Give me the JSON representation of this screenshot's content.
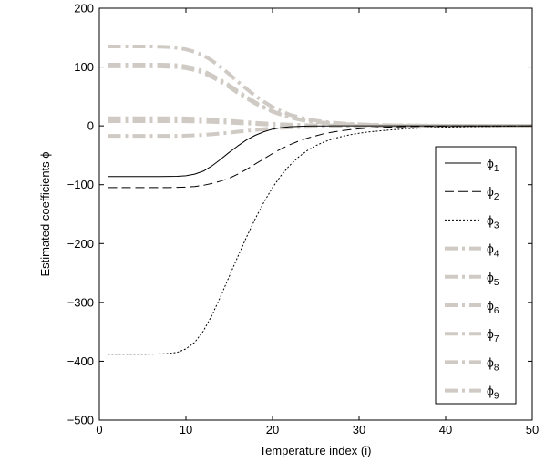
{
  "chart_data": {
    "type": "line",
    "title": "",
    "xlabel": "Temperature index (i)",
    "ylabel": "Estimated coefficients ϕ",
    "xlim": [
      0,
      50
    ],
    "ylim": [
      -500,
      200
    ],
    "xticks": [
      0,
      10,
      20,
      30,
      40,
      50
    ],
    "yticks": [
      -500,
      -400,
      -300,
      -200,
      -100,
      0,
      100,
      200
    ],
    "grid": false,
    "legend_position": "right",
    "x": [
      1,
      2,
      3,
      4,
      5,
      6,
      7,
      8,
      9,
      10,
      11,
      12,
      13,
      14,
      15,
      16,
      17,
      18,
      19,
      20,
      21,
      22,
      23,
      24,
      25,
      26,
      27,
      28,
      29,
      30,
      31,
      32,
      33,
      34,
      35,
      36,
      37,
      38,
      39,
      40,
      41,
      42,
      43,
      44,
      45,
      46,
      47,
      48,
      49,
      50
    ],
    "series": [
      {
        "name": "ϕ",
        "subscript": "1",
        "color": "#000000",
        "dash": "solid",
        "width": 1,
        "values": [
          -86,
          -86,
          -86,
          -86,
          -86,
          -86,
          -86,
          -85.9,
          -85.8,
          -84.8,
          -82,
          -77,
          -68,
          -57,
          -45,
          -34,
          -24,
          -16,
          -10,
          -5.5,
          -3,
          -1.5,
          -0.8,
          -0.4,
          -0.2,
          -0.1,
          0,
          0,
          0,
          0,
          0,
          0,
          0,
          0,
          0,
          0,
          0,
          0,
          0,
          0,
          0,
          0,
          0,
          0,
          0,
          0,
          0,
          0,
          0,
          0
        ]
      },
      {
        "name": "ϕ",
        "subscript": "2",
        "color": "#000000",
        "dash": "dashed",
        "width": 1,
        "values": [
          -105,
          -105,
          -105,
          -105,
          -105,
          -105,
          -105,
          -105,
          -104.5,
          -104,
          -103,
          -101,
          -98,
          -94,
          -89,
          -82,
          -74,
          -65,
          -56,
          -47,
          -39,
          -32,
          -26,
          -21,
          -17,
          -13,
          -10.5,
          -8.2,
          -6.4,
          -5,
          -3.9,
          -3,
          -2.3,
          -1.8,
          -1.4,
          -1.1,
          -0.85,
          -0.65,
          -0.5,
          -0.38,
          -0.3,
          -0.22,
          -0.17,
          -0.13,
          -0.1,
          -0.07,
          -0.05,
          -0.04,
          -0.03,
          -0.02
        ]
      },
      {
        "name": "ϕ",
        "subscript": "3",
        "color": "#000000",
        "dash": "dotted",
        "width": 1,
        "values": [
          -388,
          -388,
          -388,
          -388,
          -388,
          -388,
          -387.5,
          -387,
          -385,
          -379,
          -368,
          -349,
          -322,
          -290,
          -256,
          -222,
          -189,
          -158,
          -130,
          -105,
          -84,
          -67,
          -53,
          -42,
          -33.5,
          -27,
          -22,
          -18,
          -15,
          -12.5,
          -10.5,
          -9,
          -7.6,
          -6.4,
          -5.4,
          -4.5,
          -3.8,
          -3.2,
          -2.6,
          -2.2,
          -1.8,
          -1.5,
          -1.2,
          -1,
          -0.8,
          -0.65,
          -0.5,
          -0.4,
          -0.3,
          -0.2
        ]
      },
      {
        "name": "ϕ",
        "subscript": "4",
        "color": "#cfcac4",
        "dash": "dashdot",
        "width": 4,
        "values": [
          135,
          135,
          135,
          135,
          135,
          135,
          134.5,
          134,
          132.5,
          130,
          126,
          120,
          111,
          100,
          88,
          75,
          63,
          51,
          41,
          32,
          25,
          19,
          15,
          11.5,
          9,
          7,
          5.5,
          4.3,
          3.4,
          2.7,
          2.1,
          1.7,
          1.3,
          1,
          0.8,
          0.6,
          0.5,
          0.4,
          0.3,
          0.25,
          0.2,
          0.15,
          0.12,
          0.1,
          0.08,
          0.06,
          0.05,
          0.04,
          0.03,
          0.02
        ]
      },
      {
        "name": "ϕ",
        "subscript": "5",
        "color": "#cfcac4",
        "dash": "dashdot",
        "width": 4,
        "values": [
          101,
          101,
          101,
          101,
          101,
          101,
          101,
          100.5,
          100,
          98,
          95,
          90,
          83,
          75,
          66,
          56,
          47,
          38,
          31,
          24,
          19,
          14.5,
          11,
          8.5,
          6.7,
          5.2,
          4.1,
          3.2,
          2.5,
          2,
          1.6,
          1.3,
          1,
          0.8,
          0.6,
          0.5,
          0.4,
          0.3,
          0.25,
          0.2,
          0.15,
          0.12,
          0.1,
          0.08,
          0.06,
          0.05,
          0.04,
          0.03,
          0.02,
          0.01
        ]
      },
      {
        "name": "ϕ",
        "subscript": "6",
        "color": "#cfcac4",
        "dash": "dashdot",
        "width": 4,
        "values": [
          104,
          104,
          104,
          104,
          104,
          104,
          104,
          103.5,
          103,
          101,
          98,
          93,
          86,
          78,
          69,
          59,
          49,
          40,
          32,
          25,
          19.5,
          15,
          11.5,
          9,
          7,
          5.4,
          4.2,
          3.3,
          2.6,
          2,
          1.6,
          1.3,
          1,
          0.8,
          0.6,
          0.5,
          0.4,
          0.3,
          0.25,
          0.2,
          0.15,
          0.12,
          0.1,
          0.08,
          0.06,
          0.05,
          0.04,
          0.03,
          0.02,
          0.01
        ]
      },
      {
        "name": "ϕ",
        "subscript": "7",
        "color": "#cfcac4",
        "dash": "dashdot",
        "width": 4,
        "values": [
          13,
          13,
          13,
          13,
          13,
          13,
          13,
          13,
          12.9,
          12.7,
          12.3,
          11.7,
          10.9,
          9.9,
          8.8,
          7.6,
          6.4,
          5.3,
          4.3,
          3.4,
          2.7,
          2.1,
          1.6,
          1.2,
          0.95,
          0.73,
          0.56,
          0.43,
          0.33,
          0.25,
          0.19,
          0.15,
          0.11,
          0.09,
          0.07,
          0.05,
          0.04,
          0.03,
          0.02,
          0.02,
          0.01,
          0.01,
          0.01,
          0.01,
          0,
          0,
          0,
          0,
          0,
          0
        ]
      },
      {
        "name": "ϕ",
        "subscript": "8",
        "color": "#cfcac4",
        "dash": "dashdot",
        "width": 4,
        "values": [
          8,
          8,
          8,
          8,
          8,
          8,
          8,
          8,
          7.95,
          7.85,
          7.6,
          7.2,
          6.7,
          6.1,
          5.4,
          4.7,
          3.9,
          3.25,
          2.6,
          2.1,
          1.65,
          1.3,
          1,
          0.75,
          0.58,
          0.45,
          0.35,
          0.27,
          0.2,
          0.15,
          0.12,
          0.09,
          0.07,
          0.05,
          0.04,
          0.03,
          0.02,
          0.02,
          0.01,
          0.01,
          0.01,
          0,
          0,
          0,
          0,
          0,
          0,
          0,
          0,
          0
        ]
      },
      {
        "name": "ϕ",
        "subscript": "9",
        "color": "#cfcac4",
        "dash": "dashdot",
        "width": 4,
        "values": [
          -17,
          -17,
          -17,
          -17,
          -17,
          -17,
          -17,
          -17,
          -16.9,
          -16.6,
          -16.1,
          -15.3,
          -14.3,
          -13,
          -11.5,
          -9.9,
          -8.4,
          -6.9,
          -5.6,
          -4.4,
          -3.5,
          -2.7,
          -2.1,
          -1.6,
          -1.2,
          -0.95,
          -0.73,
          -0.56,
          -0.43,
          -0.33,
          -0.25,
          -0.19,
          -0.15,
          -0.11,
          -0.09,
          -0.07,
          -0.05,
          -0.04,
          -0.03,
          -0.02,
          -0.02,
          -0.01,
          -0.01,
          -0.01,
          0,
          0,
          0,
          0,
          0,
          0
        ]
      }
    ]
  }
}
